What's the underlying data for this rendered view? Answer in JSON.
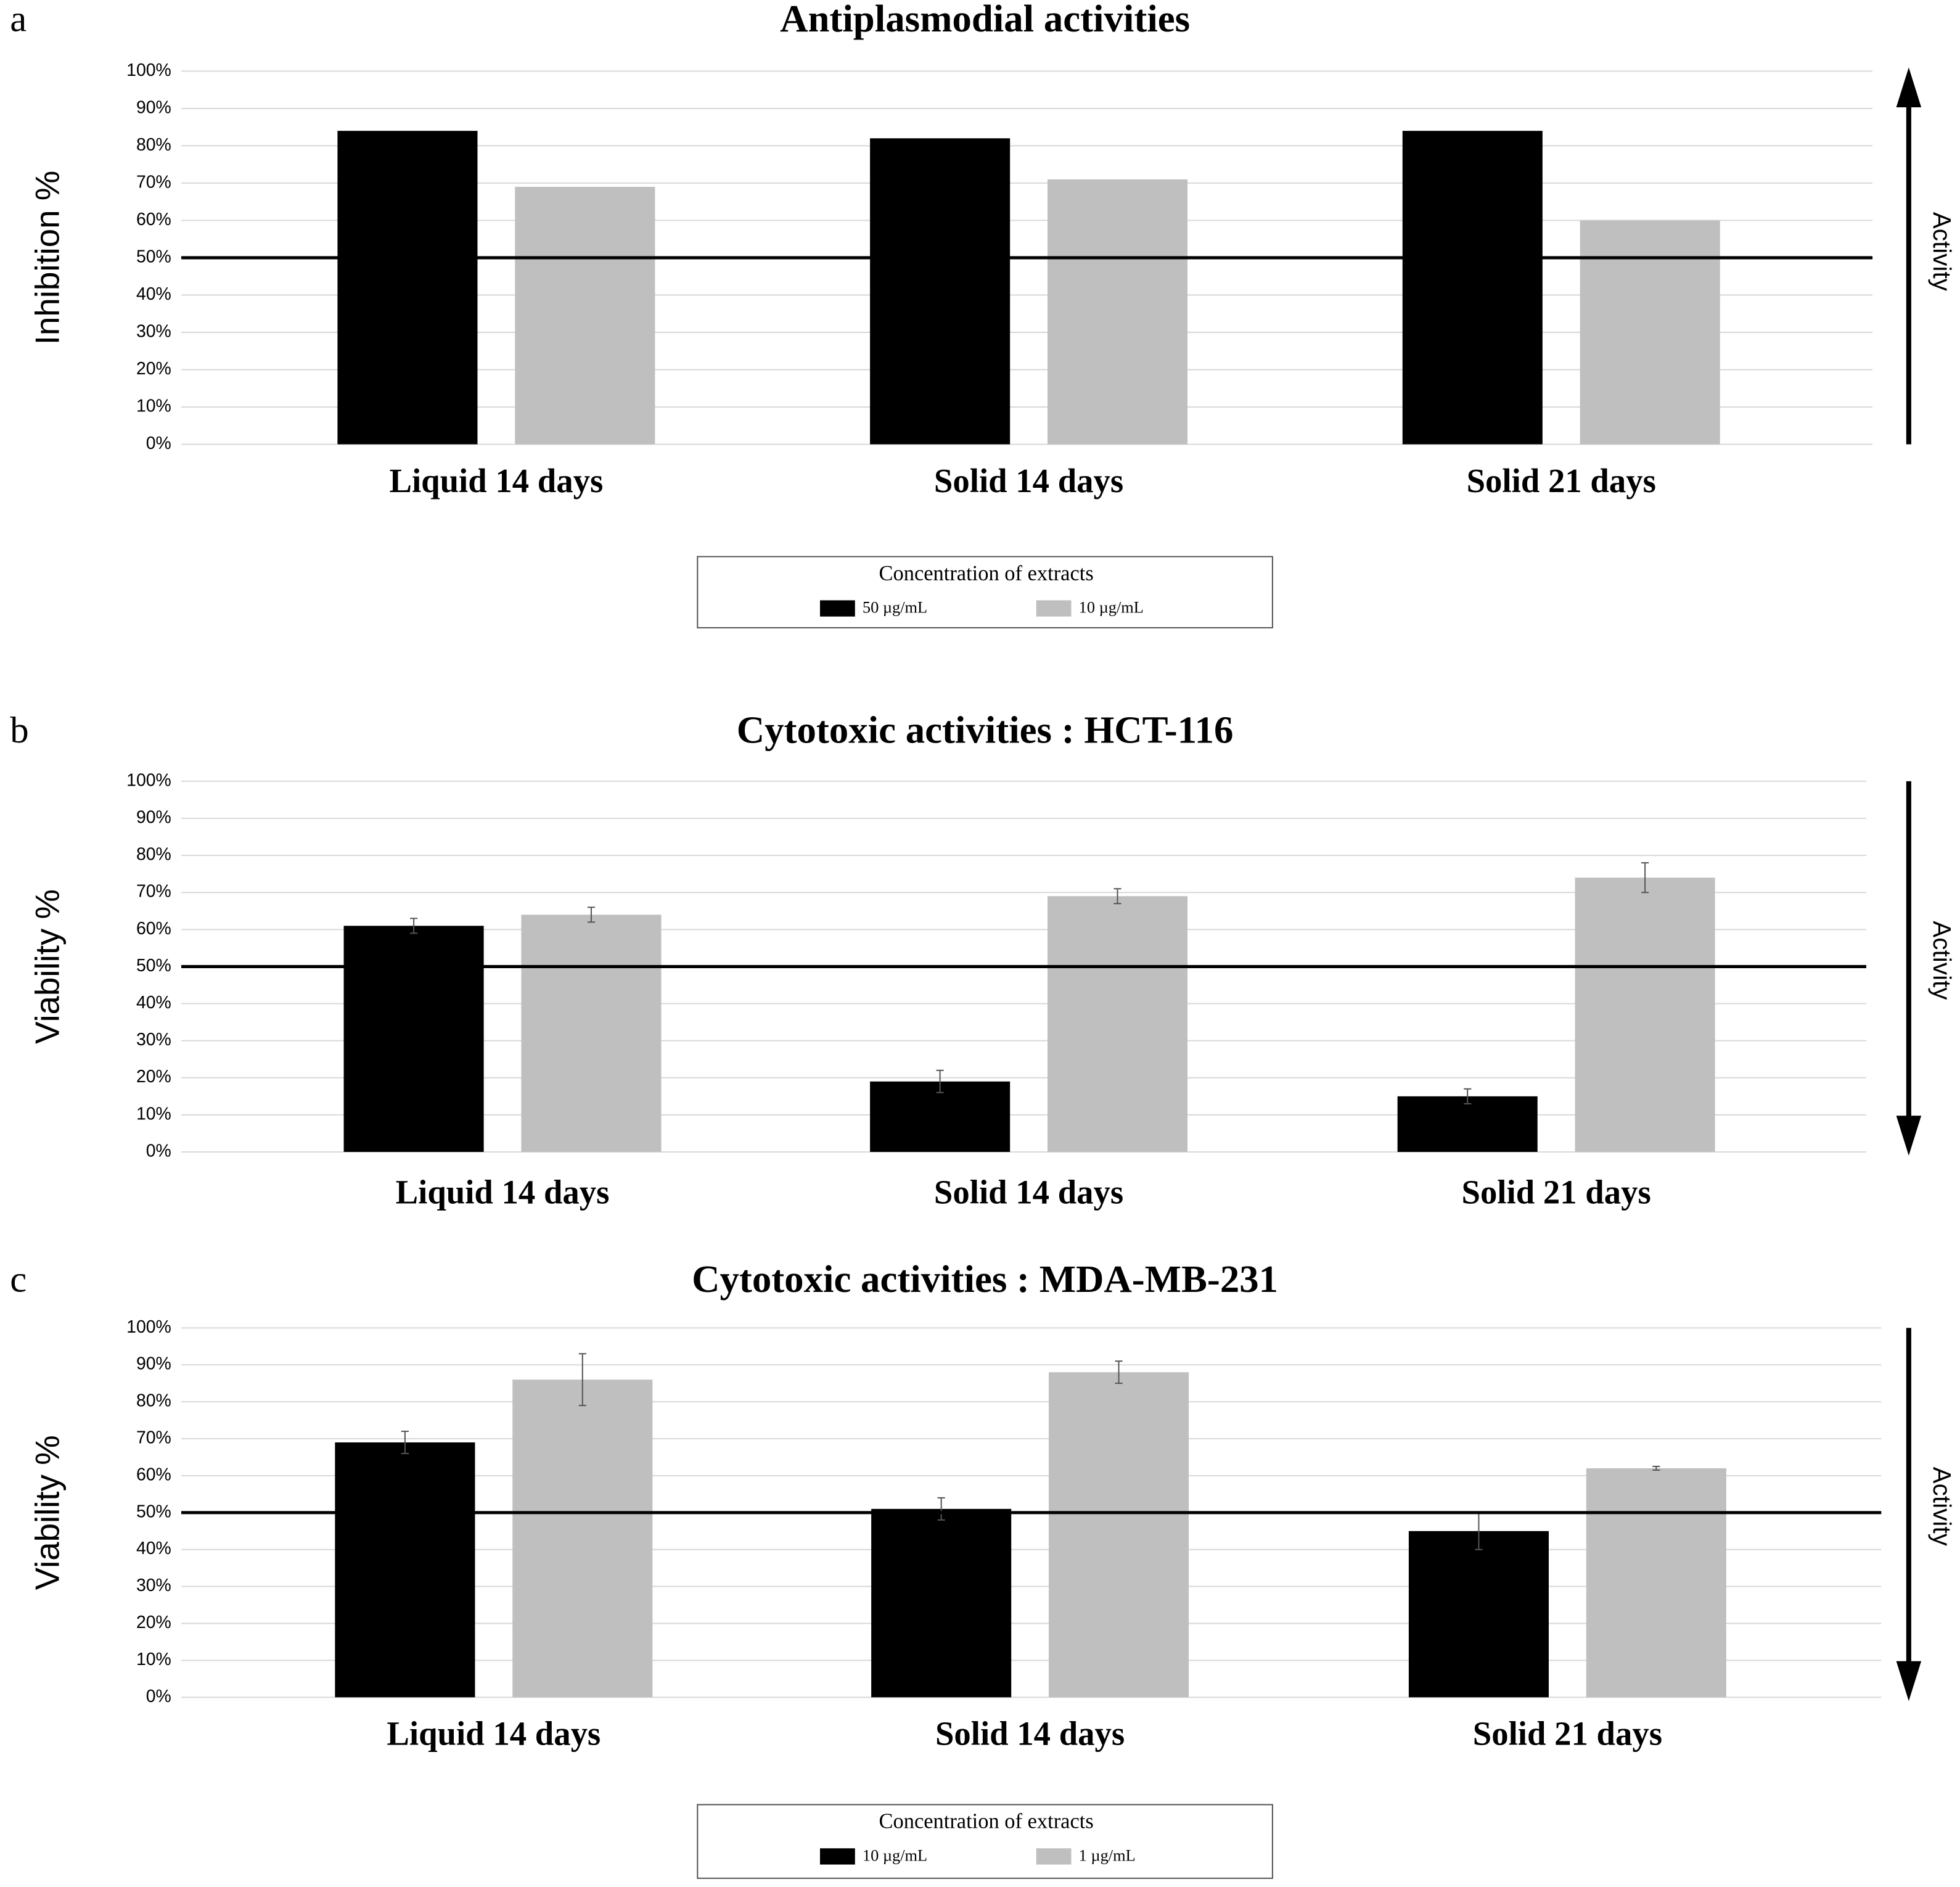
{
  "chart_data": [
    {
      "type": "bar",
      "panel": "a",
      "title": "Antiplasmodial activities",
      "ylabel": "Inhibition %",
      "categories": [
        "Liquid 14 days",
        "Solid 14 days",
        "Solid 21 days"
      ],
      "series": [
        {
          "name": "50 µg/mL",
          "color": "#000000",
          "values": [
            84,
            82,
            84
          ]
        },
        {
          "name": "10 µg/mL",
          "color": "#bfbfbf",
          "values": [
            69,
            71,
            60
          ]
        }
      ],
      "ylim": [
        0,
        100
      ],
      "yticks": [
        {
          "value": 0,
          "label": "0%"
        },
        {
          "value": 10,
          "label": "10%"
        },
        {
          "value": 20,
          "label": "20%"
        },
        {
          "value": 30,
          "label": "30%"
        },
        {
          "value": 40,
          "label": "40%"
        },
        {
          "value": 50,
          "label": "50%"
        },
        {
          "value": 60,
          "label": "60%"
        },
        {
          "value": 70,
          "label": "70%"
        },
        {
          "value": 80,
          "label": "80%"
        },
        {
          "value": 90,
          "label": "90%"
        },
        {
          "value": 100,
          "label": "100%"
        }
      ],
      "grid": true,
      "reference_line": 50,
      "arrow_direction": "up",
      "arrow_label": "Activity",
      "legend_title": "Concentration of extracts"
    },
    {
      "type": "bar",
      "panel": "b",
      "title": "Cytotoxic activities : HCT-116",
      "ylabel": "Viability %",
      "categories": [
        "Liquid 14 days",
        "Solid 14 days",
        "Solid 21 days"
      ],
      "series": [
        {
          "color": "#000000",
          "values": [
            61,
            19,
            15
          ],
          "errors": [
            2,
            3,
            2
          ]
        },
        {
          "color": "#bfbfbf",
          "values": [
            64,
            69,
            74
          ],
          "errors": [
            2,
            2,
            4
          ]
        }
      ],
      "ylim": [
        0,
        100
      ],
      "yticks": [
        {
          "value": 0,
          "label": "0%"
        },
        {
          "value": 10,
          "label": "10%"
        },
        {
          "value": 20,
          "label": "20%"
        },
        {
          "value": 30,
          "label": "30%"
        },
        {
          "value": 40,
          "label": "40%"
        },
        {
          "value": 50,
          "label": "50%"
        },
        {
          "value": 60,
          "label": "60%"
        },
        {
          "value": 70,
          "label": "70%"
        },
        {
          "value": 80,
          "label": "80%"
        },
        {
          "value": 90,
          "label": "90%"
        },
        {
          "value": 100,
          "label": "100%"
        }
      ],
      "grid": true,
      "reference_line": 50,
      "arrow_direction": "down",
      "arrow_label": "Activity"
    },
    {
      "type": "bar",
      "panel": "c",
      "title": "Cytotoxic activities : MDA-MB-231",
      "ylabel": "Viability %",
      "categories": [
        "Liquid 14 days",
        "Solid 14 days",
        "Solid 21 days"
      ],
      "series": [
        {
          "name": "10 µg/mL",
          "color": "#000000",
          "values": [
            69,
            51,
            45
          ],
          "errors": [
            3,
            3,
            5
          ]
        },
        {
          "name": "1 µg/mL",
          "color": "#bfbfbf",
          "values": [
            86,
            88,
            62
          ],
          "errors": [
            7,
            3,
            0.5
          ]
        }
      ],
      "ylim": [
        0,
        100
      ],
      "yticks": [
        {
          "value": 0,
          "label": "0%"
        },
        {
          "value": 10,
          "label": "10%"
        },
        {
          "value": 20,
          "label": "20%"
        },
        {
          "value": 30,
          "label": "30%"
        },
        {
          "value": 40,
          "label": "40%"
        },
        {
          "value": 50,
          "label": "50%"
        },
        {
          "value": 60,
          "label": "60%"
        },
        {
          "value": 70,
          "label": "70%"
        },
        {
          "value": 80,
          "label": "80%"
        },
        {
          "value": 90,
          "label": "90%"
        },
        {
          "value": 100,
          "label": "100%"
        }
      ],
      "grid": true,
      "reference_line": 50,
      "arrow_direction": "down",
      "arrow_label": "Activity",
      "legend_title": "Concentration of extracts"
    }
  ]
}
